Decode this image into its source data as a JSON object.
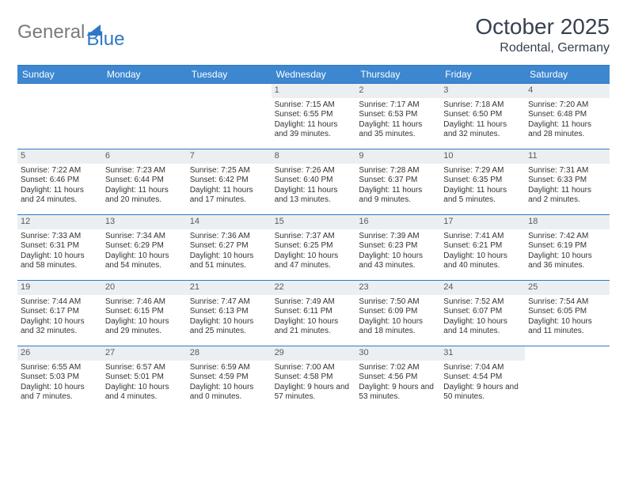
{
  "logo": {
    "text_gray": "General",
    "text_blue": "Blue"
  },
  "header": {
    "month": "October 2025",
    "location": "Rodental, Germany"
  },
  "colors": {
    "header_bg": "#3d87d0",
    "border": "#2f78c4",
    "daynum_bg": "#eceff1",
    "text": "#333333"
  },
  "day_names": [
    "Sunday",
    "Monday",
    "Tuesday",
    "Wednesday",
    "Thursday",
    "Friday",
    "Saturday"
  ],
  "weeks": [
    [
      {
        "empty": true
      },
      {
        "empty": true
      },
      {
        "empty": true
      },
      {
        "day": "1",
        "sunrise": "Sunrise: 7:15 AM",
        "sunset": "Sunset: 6:55 PM",
        "daylight": "Daylight: 11 hours and 39 minutes."
      },
      {
        "day": "2",
        "sunrise": "Sunrise: 7:17 AM",
        "sunset": "Sunset: 6:53 PM",
        "daylight": "Daylight: 11 hours and 35 minutes."
      },
      {
        "day": "3",
        "sunrise": "Sunrise: 7:18 AM",
        "sunset": "Sunset: 6:50 PM",
        "daylight": "Daylight: 11 hours and 32 minutes."
      },
      {
        "day": "4",
        "sunrise": "Sunrise: 7:20 AM",
        "sunset": "Sunset: 6:48 PM",
        "daylight": "Daylight: 11 hours and 28 minutes."
      }
    ],
    [
      {
        "day": "5",
        "sunrise": "Sunrise: 7:22 AM",
        "sunset": "Sunset: 6:46 PM",
        "daylight": "Daylight: 11 hours and 24 minutes."
      },
      {
        "day": "6",
        "sunrise": "Sunrise: 7:23 AM",
        "sunset": "Sunset: 6:44 PM",
        "daylight": "Daylight: 11 hours and 20 minutes."
      },
      {
        "day": "7",
        "sunrise": "Sunrise: 7:25 AM",
        "sunset": "Sunset: 6:42 PM",
        "daylight": "Daylight: 11 hours and 17 minutes."
      },
      {
        "day": "8",
        "sunrise": "Sunrise: 7:26 AM",
        "sunset": "Sunset: 6:40 PM",
        "daylight": "Daylight: 11 hours and 13 minutes."
      },
      {
        "day": "9",
        "sunrise": "Sunrise: 7:28 AM",
        "sunset": "Sunset: 6:37 PM",
        "daylight": "Daylight: 11 hours and 9 minutes."
      },
      {
        "day": "10",
        "sunrise": "Sunrise: 7:29 AM",
        "sunset": "Sunset: 6:35 PM",
        "daylight": "Daylight: 11 hours and 5 minutes."
      },
      {
        "day": "11",
        "sunrise": "Sunrise: 7:31 AM",
        "sunset": "Sunset: 6:33 PM",
        "daylight": "Daylight: 11 hours and 2 minutes."
      }
    ],
    [
      {
        "day": "12",
        "sunrise": "Sunrise: 7:33 AM",
        "sunset": "Sunset: 6:31 PM",
        "daylight": "Daylight: 10 hours and 58 minutes."
      },
      {
        "day": "13",
        "sunrise": "Sunrise: 7:34 AM",
        "sunset": "Sunset: 6:29 PM",
        "daylight": "Daylight: 10 hours and 54 minutes."
      },
      {
        "day": "14",
        "sunrise": "Sunrise: 7:36 AM",
        "sunset": "Sunset: 6:27 PM",
        "daylight": "Daylight: 10 hours and 51 minutes."
      },
      {
        "day": "15",
        "sunrise": "Sunrise: 7:37 AM",
        "sunset": "Sunset: 6:25 PM",
        "daylight": "Daylight: 10 hours and 47 minutes."
      },
      {
        "day": "16",
        "sunrise": "Sunrise: 7:39 AM",
        "sunset": "Sunset: 6:23 PM",
        "daylight": "Daylight: 10 hours and 43 minutes."
      },
      {
        "day": "17",
        "sunrise": "Sunrise: 7:41 AM",
        "sunset": "Sunset: 6:21 PM",
        "daylight": "Daylight: 10 hours and 40 minutes."
      },
      {
        "day": "18",
        "sunrise": "Sunrise: 7:42 AM",
        "sunset": "Sunset: 6:19 PM",
        "daylight": "Daylight: 10 hours and 36 minutes."
      }
    ],
    [
      {
        "day": "19",
        "sunrise": "Sunrise: 7:44 AM",
        "sunset": "Sunset: 6:17 PM",
        "daylight": "Daylight: 10 hours and 32 minutes."
      },
      {
        "day": "20",
        "sunrise": "Sunrise: 7:46 AM",
        "sunset": "Sunset: 6:15 PM",
        "daylight": "Daylight: 10 hours and 29 minutes."
      },
      {
        "day": "21",
        "sunrise": "Sunrise: 7:47 AM",
        "sunset": "Sunset: 6:13 PM",
        "daylight": "Daylight: 10 hours and 25 minutes."
      },
      {
        "day": "22",
        "sunrise": "Sunrise: 7:49 AM",
        "sunset": "Sunset: 6:11 PM",
        "daylight": "Daylight: 10 hours and 21 minutes."
      },
      {
        "day": "23",
        "sunrise": "Sunrise: 7:50 AM",
        "sunset": "Sunset: 6:09 PM",
        "daylight": "Daylight: 10 hours and 18 minutes."
      },
      {
        "day": "24",
        "sunrise": "Sunrise: 7:52 AM",
        "sunset": "Sunset: 6:07 PM",
        "daylight": "Daylight: 10 hours and 14 minutes."
      },
      {
        "day": "25",
        "sunrise": "Sunrise: 7:54 AM",
        "sunset": "Sunset: 6:05 PM",
        "daylight": "Daylight: 10 hours and 11 minutes."
      }
    ],
    [
      {
        "day": "26",
        "sunrise": "Sunrise: 6:55 AM",
        "sunset": "Sunset: 5:03 PM",
        "daylight": "Daylight: 10 hours and 7 minutes."
      },
      {
        "day": "27",
        "sunrise": "Sunrise: 6:57 AM",
        "sunset": "Sunset: 5:01 PM",
        "daylight": "Daylight: 10 hours and 4 minutes."
      },
      {
        "day": "28",
        "sunrise": "Sunrise: 6:59 AM",
        "sunset": "Sunset: 4:59 PM",
        "daylight": "Daylight: 10 hours and 0 minutes."
      },
      {
        "day": "29",
        "sunrise": "Sunrise: 7:00 AM",
        "sunset": "Sunset: 4:58 PM",
        "daylight": "Daylight: 9 hours and 57 minutes."
      },
      {
        "day": "30",
        "sunrise": "Sunrise: 7:02 AM",
        "sunset": "Sunset: 4:56 PM",
        "daylight": "Daylight: 9 hours and 53 minutes."
      },
      {
        "day": "31",
        "sunrise": "Sunrise: 7:04 AM",
        "sunset": "Sunset: 4:54 PM",
        "daylight": "Daylight: 9 hours and 50 minutes."
      },
      {
        "empty": true
      }
    ]
  ]
}
